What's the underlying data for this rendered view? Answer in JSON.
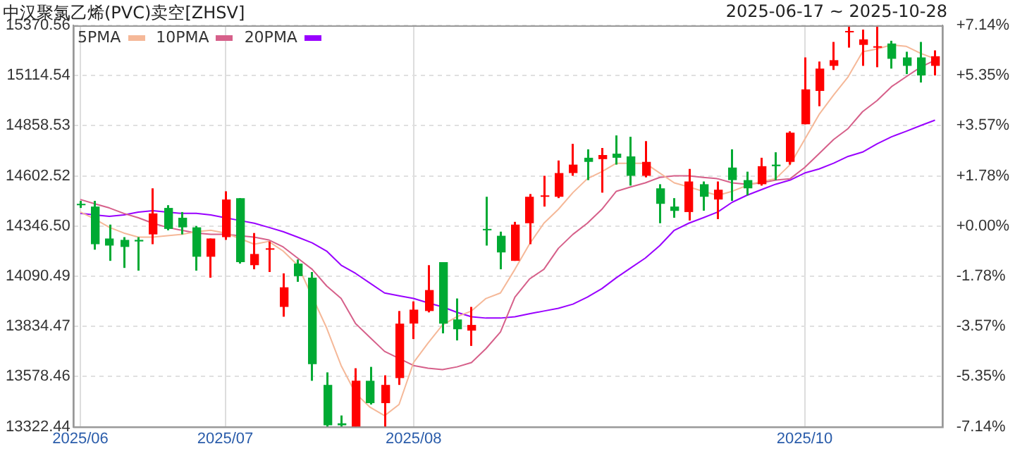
{
  "chart_data": {
    "type": "candlestick",
    "title": "中汉聚氯乙烯(PVC)卖空[ZHSV]",
    "subtitle": "2025-06-17 ~ 2025-10-28",
    "categories": [
      "2025/06",
      null,
      null,
      null,
      null,
      null,
      null,
      null,
      null,
      null,
      "2025/07",
      null,
      null,
      null,
      null,
      null,
      null,
      null,
      null,
      null,
      null,
      null,
      null,
      "2025/08",
      null,
      null,
      null,
      null,
      null,
      null,
      null,
      null,
      null,
      null,
      null,
      null,
      null,
      null,
      null,
      null,
      null,
      null,
      null,
      null,
      null,
      null,
      null,
      null,
      null,
      null,
      "2025/10",
      null,
      null,
      null,
      null,
      null,
      null,
      null,
      null,
      null
    ],
    "ohlc": [
      [
        14460,
        14475,
        14439,
        14453
      ],
      [
        14446,
        14475,
        14226,
        14254
      ],
      [
        14283,
        14354,
        14169,
        14247
      ],
      [
        14276,
        14290,
        14133,
        14240
      ],
      [
        14276,
        14290,
        14119,
        14268
      ],
      [
        14304,
        14539,
        14254,
        14411
      ],
      [
        14439,
        14453,
        14325,
        14332
      ],
      [
        14389,
        14418,
        14304,
        14340
      ],
      [
        14340,
        14347,
        14119,
        14190
      ],
      [
        14190,
        14283,
        14083,
        14283
      ],
      [
        14290,
        14524,
        14276,
        14482
      ],
      [
        14489,
        14489,
        14155,
        14162
      ],
      [
        14147,
        14311,
        14126,
        14204
      ],
      [
        14226,
        14268,
        14112,
        14233
      ],
      [
        13934,
        14105,
        13884,
        14034
      ],
      [
        14155,
        14176,
        14062,
        14091
      ],
      [
        14083,
        14112,
        13557,
        13642
      ],
      [
        13536,
        13600,
        13323,
        13330
      ],
      [
        13340,
        13380,
        13323,
        13330
      ],
      [
        13323,
        13621,
        13323,
        13557
      ],
      [
        13557,
        13628,
        13436,
        13443
      ],
      [
        13443,
        13585,
        13323,
        13536
      ],
      [
        13571,
        13913,
        13536,
        13849
      ],
      [
        13849,
        13962,
        13770,
        13920
      ],
      [
        13913,
        14147,
        13906,
        14020
      ],
      [
        14162,
        14162,
        13799,
        13849
      ],
      [
        13870,
        13977,
        13763,
        13820
      ],
      [
        13813,
        13934,
        13735,
        13842
      ],
      [
        14332,
        14496,
        14247,
        14325
      ],
      [
        14297,
        14318,
        14126,
        14212
      ],
      [
        14169,
        14368,
        14169,
        14354
      ],
      [
        14361,
        14510,
        14254,
        14496
      ],
      [
        14496,
        14603,
        14446,
        14503
      ],
      [
        14496,
        14681,
        14489,
        14617
      ],
      [
        14617,
        14766,
        14603,
        14660
      ],
      [
        14695,
        14738,
        14581,
        14674
      ],
      [
        14688,
        14745,
        14517,
        14709
      ],
      [
        14716,
        14809,
        14660,
        14695
      ],
      [
        14702,
        14802,
        14553,
        14603
      ],
      [
        14603,
        14780,
        14595,
        14674
      ],
      [
        14539,
        14560,
        14361,
        14460
      ],
      [
        14446,
        14489,
        14389,
        14424
      ],
      [
        14418,
        14638,
        14375,
        14574
      ],
      [
        14560,
        14574,
        14425,
        14496
      ],
      [
        14482,
        14574,
        14382,
        14532
      ],
      [
        14645,
        14738,
        14475,
        14581
      ],
      [
        14581,
        14624,
        14503,
        14539
      ],
      [
        14560,
        14695,
        14553,
        14652
      ],
      [
        14660,
        14723,
        14581,
        14652
      ],
      [
        14674,
        14830,
        14660,
        14823
      ],
      [
        14866,
        15207,
        14866,
        15044
      ],
      [
        15036,
        15186,
        14958,
        15150
      ],
      [
        15164,
        15286,
        15143,
        15193
      ],
      [
        15335,
        15371,
        15257,
        15342
      ],
      [
        15271,
        15349,
        15164,
        15299
      ],
      [
        15257,
        15371,
        15157,
        15264
      ],
      [
        15278,
        15292,
        15150,
        15200
      ],
      [
        15207,
        15236,
        15122,
        15164
      ],
      [
        15207,
        15286,
        15079,
        15115
      ],
      [
        15164,
        15243,
        15115,
        15213
      ]
    ],
    "colors": [
      "#00aa33",
      "#00aa33",
      "#00aa33",
      "#00aa33",
      "#00aa33",
      "#ff0000",
      "#00aa33",
      "#00aa33",
      "#00aa33",
      "#ff0000",
      "#ff0000",
      "#00aa33",
      "#ff0000",
      "#ff0000",
      "#ff0000",
      "#00aa33",
      "#00aa33",
      "#00aa33",
      "#00aa33",
      "#ff0000",
      "#00aa33",
      "#ff0000",
      "#ff0000",
      "#ff0000",
      "#ff0000",
      "#00aa33",
      "#00aa33",
      "#ff0000",
      "#00aa33",
      "#00aa33",
      "#ff0000",
      "#ff0000",
      "#ff0000",
      "#ff0000",
      "#ff0000",
      "#00aa33",
      "#ff0000",
      "#00aa33",
      "#00aa33",
      "#ff0000",
      "#00aa33",
      "#00aa33",
      "#ff0000",
      "#00aa33",
      "#ff0000",
      "#00aa33",
      "#00aa33",
      "#ff0000",
      "#00aa33",
      "#ff0000",
      "#ff0000",
      "#ff0000",
      "#ff0000",
      "#ff0000",
      "#ff0000",
      "#ff0000",
      "#00aa33",
      "#00aa33",
      "#00aa33",
      "#ff0000"
    ],
    "series": [
      {
        "name": "5PMA",
        "type": "line",
        "color": "#f5b898",
        "values": [
          14418,
          14382,
          14340,
          14311,
          14290,
          14290,
          14297,
          14304,
          14318,
          14325,
          14311,
          14283,
          14254,
          14268,
          14219,
          14147,
          null,
          13827,
          13635,
          13493,
          13422,
          13379,
          13436,
          13650,
          13749,
          13842,
          13884,
          13913,
          13977,
          14005,
          14126,
          14254,
          14361,
          14432,
          14517,
          14588,
          14624,
          14667,
          14667,
          14667,
          14617,
          14567,
          14546,
          14524,
          14503,
          14524,
          14553,
          14574,
          14588,
          14660,
          14788,
          14916,
          15015,
          15108,
          15236,
          15250,
          15271,
          15264,
          15228,
          15200
        ]
      },
      {
        "name": "10PMA",
        "type": "line",
        "color": "#d6608a",
        "values": [
          14482,
          14460,
          14439,
          14411,
          14389,
          14361,
          14340,
          14325,
          14311,
          14304,
          14304,
          14297,
          14290,
          14276,
          14240,
          14183,
          14126,
          14041,
          13977,
          13849,
          13778,
          13707,
          13671,
          13635,
          13621,
          13614,
          13628,
          13650,
          13721,
          13806,
          13984,
          14076,
          14126,
          14233,
          14304,
          14361,
          14432,
          14524,
          14546,
          14567,
          14595,
          14603,
          14603,
          14595,
          14588,
          14567,
          14560,
          14567,
          14581,
          14588,
          14645,
          14716,
          14788,
          14844,
          14930,
          14987,
          15058,
          15108,
          15157,
          15193
        ]
      },
      {
        "name": "20PMA",
        "type": "line",
        "color": "#9900ff",
        "values": [
          14411,
          14403,
          14396,
          14403,
          14418,
          14425,
          14418,
          14411,
          14411,
          14403,
          14389,
          14375,
          14361,
          14340,
          14318,
          14290,
          14261,
          14219,
          14147,
          14105,
          14055,
          14005,
          13991,
          13977,
          13955,
          13934,
          13906,
          13884,
          13877,
          13877,
          13884,
          13899,
          13913,
          13927,
          13948,
          13984,
          14027,
          14083,
          14133,
          14183,
          14247,
          14325,
          14361,
          14389,
          14418,
          14468,
          14503,
          14532,
          14560,
          14581,
          14617,
          14638,
          14667,
          14702,
          14724,
          14766,
          14802,
          14830,
          14859,
          14887
        ]
      }
    ],
    "ylim": [
      13322.44,
      15370.56
    ],
    "yticks": [
      {
        "value": 13322.44,
        "label": "13322.44"
      },
      {
        "value": 13578.46,
        "label": "13578.46"
      },
      {
        "value": 13834.47,
        "label": "13834.47"
      },
      {
        "value": 14090.49,
        "label": "14090.49"
      },
      {
        "value": 14346.5,
        "label": "14346.50"
      },
      {
        "value": 14602.52,
        "label": "14602.52"
      },
      {
        "value": 14858.53,
        "label": "14858.53"
      },
      {
        "value": 15114.54,
        "label": "15114.54"
      },
      {
        "value": 15370.56,
        "label": "15370.56"
      }
    ],
    "y2lim": [
      -7.14,
      7.14
    ],
    "y2ticks": [
      {
        "value": -7.14,
        "label": "-7.14%"
      },
      {
        "value": -5.35,
        "label": "-5.35%"
      },
      {
        "value": -3.57,
        "label": "-3.57%"
      },
      {
        "value": -1.78,
        "label": "-1.78%"
      },
      {
        "value": 0,
        "label": "+0.00%"
      },
      {
        "value": 1.78,
        "label": "+1.78%"
      },
      {
        "value": 3.57,
        "label": "+3.57%"
      },
      {
        "value": 5.35,
        "label": "+5.35%"
      },
      {
        "value": 7.14,
        "label": "+7.14%"
      }
    ],
    "grid": true,
    "legend": "top left"
  }
}
